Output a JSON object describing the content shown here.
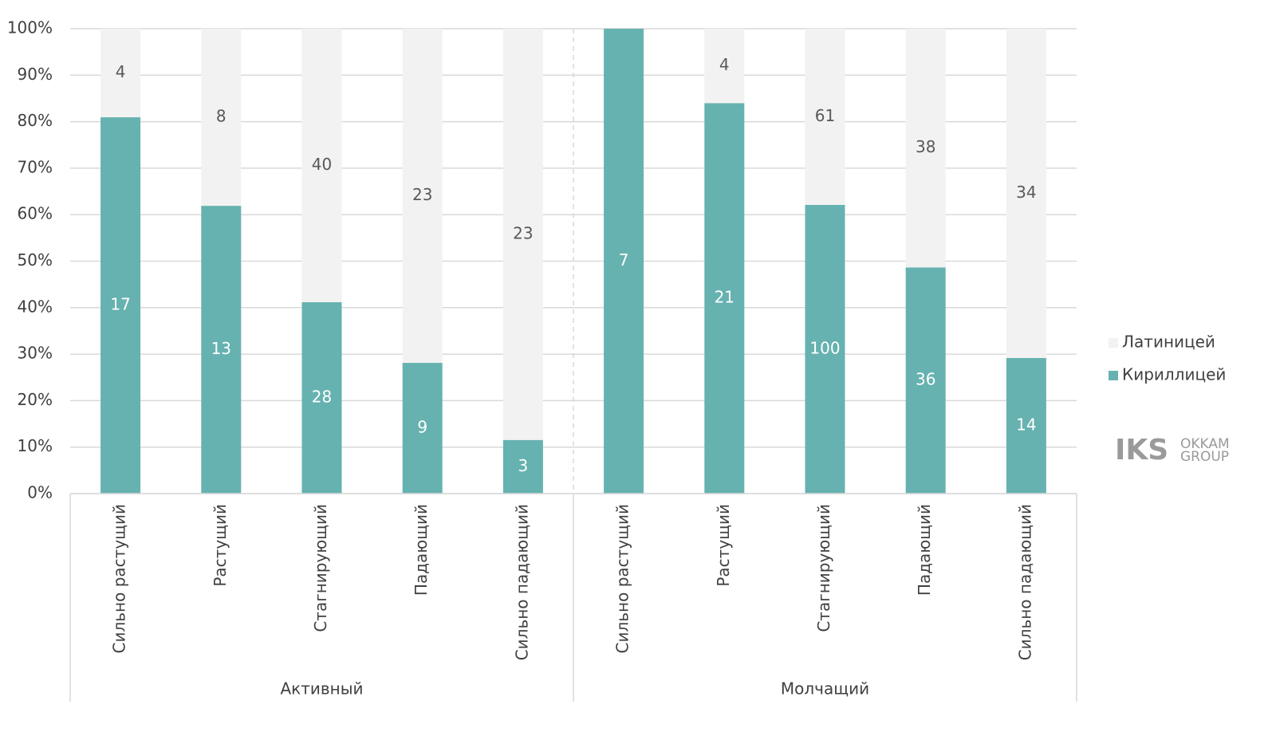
{
  "chart_data": {
    "type": "bar",
    "stacking": "percent",
    "categories": [
      "Сильно растущий",
      "Растущий",
      "Стагнирующий",
      "Падающий",
      "Сильно падающий",
      "Сильно растущий",
      "Растущий",
      "Стагнирующий",
      "Падающий",
      "Сильно падающий"
    ],
    "groups": [
      "Активный",
      "Молчащий"
    ],
    "series": [
      {
        "name": "Кириллицей",
        "color": "#66b2b0",
        "values": [
          17,
          13,
          28,
          9,
          3,
          7,
          21,
          100,
          36,
          14
        ]
      },
      {
        "name": "Латиницей",
        "color": "#f2f2f2",
        "values": [
          4,
          8,
          40,
          23,
          23,
          0,
          4,
          61,
          38,
          34
        ]
      }
    ],
    "ylim": [
      0,
      100
    ],
    "yticks": [
      {
        "value": 0,
        "label": "0%"
      },
      {
        "value": 10,
        "label": "10%"
      },
      {
        "value": 20,
        "label": "20%"
      },
      {
        "value": 30,
        "label": "30%"
      },
      {
        "value": 40,
        "label": "40%"
      },
      {
        "value": 50,
        "label": "50%"
      },
      {
        "value": 60,
        "label": "60%"
      },
      {
        "value": 70,
        "label": "70%"
      },
      {
        "value": 80,
        "label": "80%"
      },
      {
        "value": 90,
        "label": "90%"
      },
      {
        "value": 100,
        "label": "100%"
      }
    ],
    "grid": true,
    "legend": "right",
    "logo": {
      "mark": "IKS",
      "line1": "OKKAM",
      "line2": "GROUP"
    }
  }
}
